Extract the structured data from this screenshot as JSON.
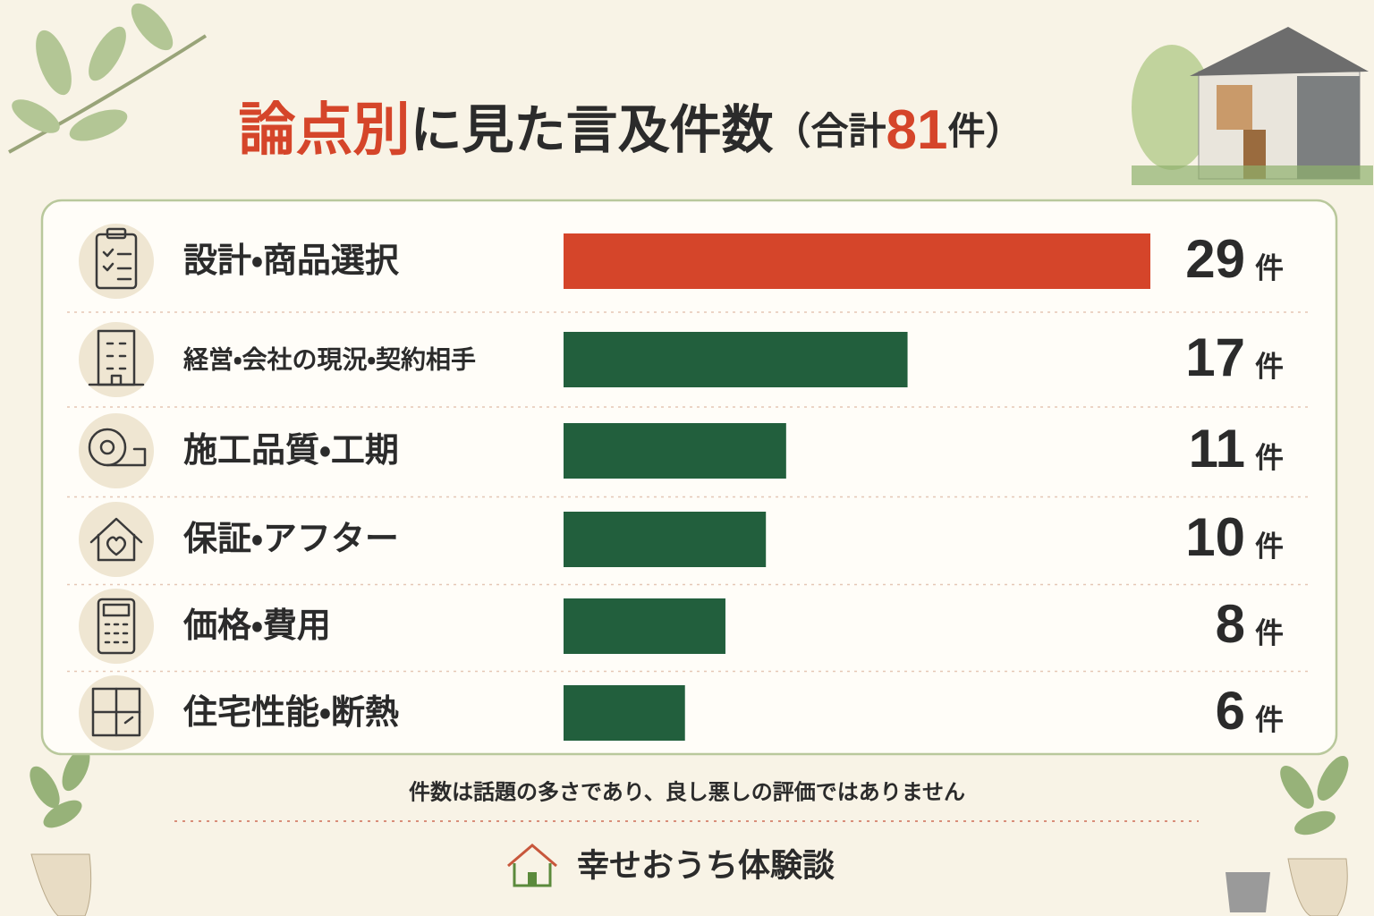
{
  "chart_data": {
    "type": "bar",
    "title_lead": "論点別",
    "title_mid": "に見た言及件数",
    "title_open": "（合計",
    "total": 81,
    "title_close": "件）",
    "categories": [
      "設計・商品選択",
      "経営・会社の現況・契約相手",
      "施工品質・工期",
      "保証・アフター",
      "価格・費用",
      "住宅性能・断熱"
    ],
    "values": [
      29,
      17,
      11,
      10,
      8,
      6
    ],
    "colors": [
      "#d5452a",
      "#225f3d",
      "#225f3d",
      "#225f3d",
      "#225f3d",
      "#225f3d"
    ],
    "unit": "件",
    "note": "件数は話題の多さであり、良し悪しの評価ではありません",
    "brand": "幸せおうち体験談"
  }
}
